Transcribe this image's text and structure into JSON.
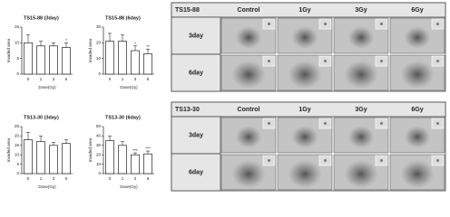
{
  "chart_data": [
    {
      "type": "bar",
      "title": "TS15-88 (3day)",
      "x_label": "Dose(Gy)",
      "y_label": "Invaded area",
      "categories": [
        "0",
        "1",
        "3",
        "6"
      ],
      "values": [
        10,
        9,
        9,
        8.5
      ],
      "errors": [
        2.5,
        1.5,
        1,
        1.5
      ],
      "annotations": [
        null,
        null,
        null,
        "*"
      ],
      "color": "#ffffff",
      "ylim": [
        0,
        15
      ],
      "yticks": [
        0,
        5,
        10,
        15
      ]
    },
    {
      "type": "bar",
      "title": "TS15-88 (6day)",
      "x_label": "Dose(Gy)",
      "y_label": "Invaded area",
      "categories": [
        "0",
        "1",
        "3",
        "6"
      ],
      "values": [
        21,
        21,
        15,
        13
      ],
      "errors": [
        5,
        4,
        3,
        3
      ],
      "annotations": [
        null,
        null,
        "*",
        "**"
      ],
      "color": "#ffffff",
      "ylim": [
        0,
        30
      ],
      "yticks": [
        0,
        10,
        20,
        30
      ]
    },
    {
      "type": "bar",
      "title": "TS13-30 (3day)",
      "x_label": "Dose(Gy)",
      "y_label": "Invaded area",
      "categories": [
        "0",
        "1",
        "3",
        "6"
      ],
      "values": [
        18,
        17,
        15,
        16
      ],
      "errors": [
        4,
        3,
        1.5,
        2
      ],
      "color": "#ffffff",
      "ylim": [
        0,
        25
      ],
      "yticks": [
        0,
        5,
        10,
        15,
        20,
        25
      ]
    },
    {
      "type": "bar",
      "title": "TS13-30 (6day)",
      "x_label": "Dose(Gy)",
      "y_label": "Invaded area",
      "categories": [
        "0",
        "1",
        "3",
        "6"
      ],
      "values": [
        35,
        30,
        20,
        21
      ],
      "errors": [
        5,
        4,
        2,
        3
      ],
      "annotations": [
        null,
        null,
        "***",
        "***"
      ],
      "color": "#ffffff",
      "ylim": [
        0,
        50
      ],
      "yticks": [
        0,
        10,
        20,
        30,
        40,
        50
      ]
    }
  ],
  "grids": [
    {
      "label": "TS15-88",
      "columns": [
        "Control",
        "1Gy",
        "3Gy",
        "6Gy"
      ],
      "rows": [
        "3day",
        "6day"
      ]
    },
    {
      "label": "TS13-30",
      "columns": [
        "Control",
        "1Gy",
        "3Gy",
        "6Gy"
      ],
      "rows": [
        "3day",
        "6day"
      ]
    }
  ]
}
